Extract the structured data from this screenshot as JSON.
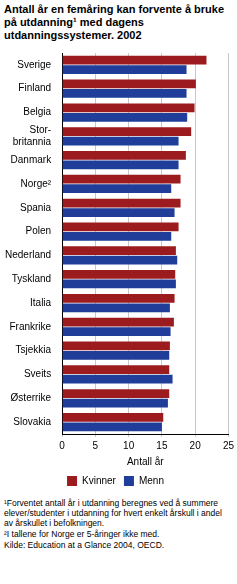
{
  "chart_data": {
    "type": "bar",
    "orientation": "horizontal",
    "title": "Antall år en femåring kan forvente å bruke på utdanning¹ med dagens utdanningssystemer. 2002",
    "x_label": "Antall år",
    "categories": [
      "Sverige",
      "Finland",
      "Belgia",
      "Stor-\nbritannia",
      "Danmark",
      "Norge²",
      "Spania",
      "Polen",
      "Nederland",
      "Tyskland",
      "Italia",
      "Frankrike",
      "Tsjekkia",
      "Sveits",
      "Østerrike",
      "Slovakia"
    ],
    "series": [
      {
        "name": "Kvinner",
        "color": "#9b1b1e",
        "values": [
          21.7,
          20.1,
          19.9,
          19.4,
          18.6,
          17.8,
          17.8,
          17.5,
          17.1,
          17.0,
          16.9,
          16.8,
          16.2,
          16.1,
          16.1,
          15.2
        ]
      },
      {
        "name": "Menn",
        "color": "#1f3d99",
        "values": [
          18.7,
          18.7,
          18.8,
          17.5,
          17.5,
          16.4,
          16.9,
          16.4,
          17.3,
          17.1,
          16.2,
          16.3,
          16.1,
          16.6,
          15.9,
          15.0
        ]
      }
    ],
    "xlim": [
      0,
      25
    ],
    "xticks": [
      0,
      5,
      10,
      15,
      20,
      25
    ],
    "grid": true,
    "legend": "bottom",
    "footnotes": [
      "¹Forventet antall år i utdanning beregnes ved å summere elever/studenter i utdanning for hvert enkelt årskull i andel av årskullet i befolkningen.",
      "²I tallene for Norge er 5-åringer ikke med."
    ],
    "source": "Kilde: Education at a Glance 2004, OECD."
  }
}
